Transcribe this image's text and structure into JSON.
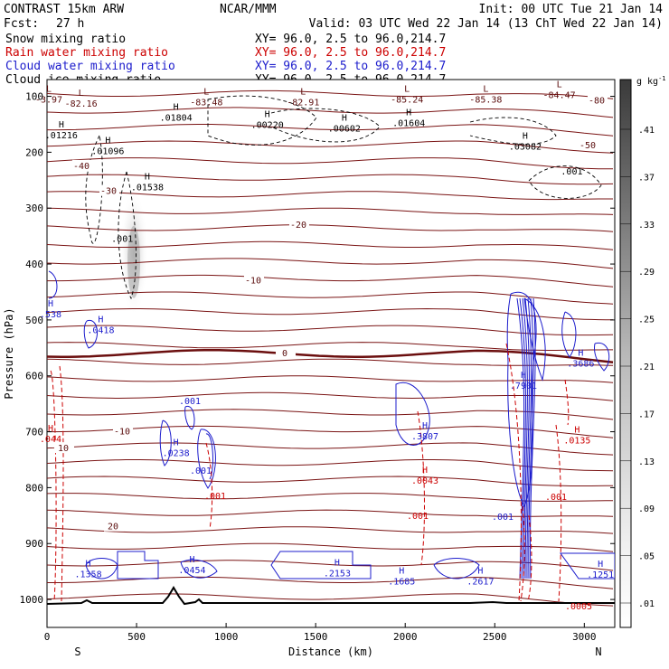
{
  "header": {
    "model": "CONTRAST 15km ARW",
    "center": "NCAR/MMM",
    "init": "Init: 00 UTC Tue 21 Jan 14",
    "fcst_label": "Fcst:",
    "fcst_value": "27 h",
    "valid": "Valid: 03 UTC Wed 22 Jan 14 (13 ChT Wed 22 Jan 14)"
  },
  "legend": [
    {
      "label": "Snow mixing ratio",
      "color": "#000000",
      "xy": ""
    },
    {
      "label": "Rain water mixing ratio",
      "color": "#cc0000",
      "xy": "XY=  96.0,  2.5 to  96.0,214.7"
    },
    {
      "label": "Cloud water mixing ratio",
      "color": "#1c1ccc",
      "xy": "XY=  96.0,  2.5 to  96.0,214.7"
    },
    {
      "label": "Cloud ice mixing ratio",
      "color": "#000000",
      "xy": "XY=  96.0,  2.5 to  96.0,214.7"
    }
  ],
  "snow_xy": "XY=  96.0,  2.5 to  96.0,214.7",
  "colorbar": {
    "unit": "g kg",
    "unit_exp": "-1",
    "labels": [
      ".41",
      ".37",
      ".33",
      ".29",
      ".25",
      ".21",
      ".17",
      ".13",
      ".09",
      ".05",
      ".01"
    ]
  },
  "chart_data": {
    "type": "cross-section",
    "xlabel": "Distance (km)",
    "ylabel": "Pressure (hPa)",
    "xlim": [
      0,
      3170
    ],
    "ylim": [
      1050,
      70
    ],
    "xticks": [
      0,
      500,
      1000,
      1500,
      2000,
      2500,
      3000
    ],
    "yticks": [
      100,
      200,
      300,
      400,
      500,
      600,
      700,
      800,
      900,
      1000
    ],
    "endpoints": {
      "left": "S",
      "right": "N"
    },
    "temperature_levels": [
      {
        "label": "-80",
        "p": 108
      },
      {
        "label": "-50",
        "p": 188
      },
      {
        "label": "-40",
        "p": 225
      },
      {
        "label": "-30",
        "p": 270
      },
      {
        "label": "-20",
        "p": 330
      },
      {
        "label": "-10",
        "p": 430
      },
      {
        "label": "0",
        "p": 560
      },
      {
        "label": "-10",
        "p": 700
      },
      {
        "label": "10",
        "p": 730
      },
      {
        "label": "20",
        "p": 870
      }
    ],
    "lows": [
      {
        "label": "-3.97",
        "x": 10,
        "p": 108
      },
      {
        "label": "-82.16",
        "x": 190,
        "p": 115
      },
      {
        "label": "-83.48",
        "x": 890,
        "p": 113
      },
      {
        "label": "-82.91",
        "x": 1430,
        "p": 113
      },
      {
        "label": "-85.24",
        "x": 2010,
        "p": 108
      },
      {
        "label": "-85.38",
        "x": 2450,
        "p": 108
      },
      {
        "label": "-84.47",
        "x": 2860,
        "p": 100
      }
    ],
    "ice_maxima": [
      {
        "label": ".01216",
        "x": 80,
        "p": 172
      },
      {
        "label": ".01096",
        "x": 340,
        "p": 200
      },
      {
        "label": ".01804",
        "x": 720,
        "p": 140
      },
      {
        "label": ".00220",
        "x": 1230,
        "p": 153
      },
      {
        "label": ".00602",
        "x": 1660,
        "p": 160
      },
      {
        "label": ".01604",
        "x": 2020,
        "p": 150
      },
      {
        "label": ".03082",
        "x": 2670,
        "p": 192
      },
      {
        "label": ".01538",
        "x": 560,
        "p": 265
      }
    ],
    "ice_minima": [
      {
        "label": ".001",
        "x": 420,
        "p": 360
      },
      {
        "label": ".001",
        "x": 2930,
        "p": 240
      }
    ],
    "cloud_water_maxima": [
      {
        "label": ".538",
        "x": 20,
        "p": 492
      },
      {
        "label": ".0418",
        "x": 300,
        "p": 520
      },
      {
        "label": ".0238",
        "x": 720,
        "p": 740
      },
      {
        "label": ".3807",
        "x": 2110,
        "p": 710
      },
      {
        "label": ".7901",
        "x": 2660,
        "p": 620
      },
      {
        "label": ".3686",
        "x": 2980,
        "p": 580
      },
      {
        "label": ".1358",
        "x": 230,
        "p": 957
      },
      {
        "label": ".0454",
        "x": 810,
        "p": 950
      },
      {
        "label": ".2153",
        "x": 1620,
        "p": 955
      },
      {
        "label": ".1685",
        "x": 1980,
        "p": 970
      },
      {
        "label": ".2617",
        "x": 2420,
        "p": 970
      },
      {
        "label": ".1251",
        "x": 3090,
        "p": 958
      }
    ],
    "rain_maxima": [
      {
        "label": ".044",
        "x": 20,
        "p": 715
      },
      {
        "label": ".0043",
        "x": 2110,
        "p": 790
      },
      {
        "label": ".0135",
        "x": 2960,
        "p": 718
      }
    ],
    "snow_maximum": {
      "x": 500,
      "p": 380,
      "value": 0.41
    },
    "cloud_water_min_label": ".001",
    "rain_min_label": ".001",
    "rain_bottom_label": ".0005"
  }
}
